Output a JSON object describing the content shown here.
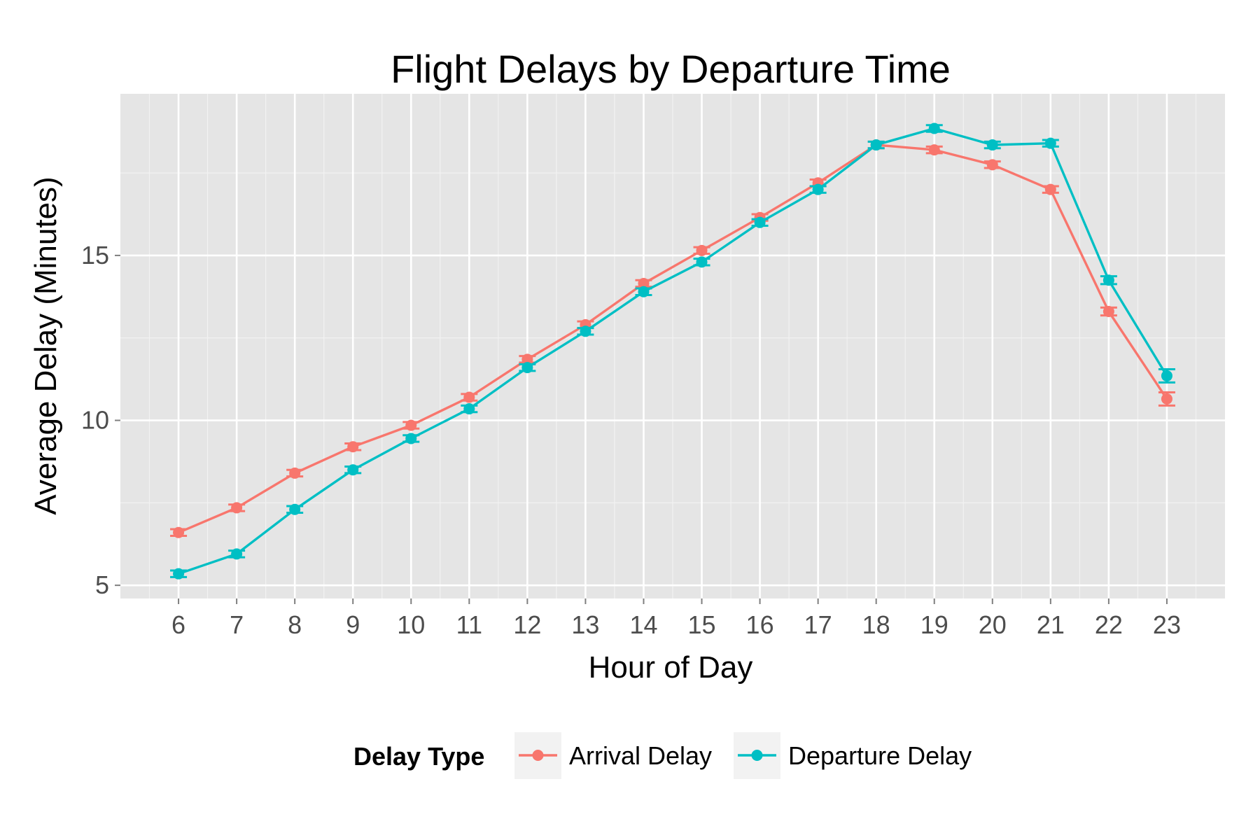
{
  "chart_data": {
    "type": "line",
    "title": "Flight Delays by Departure Time",
    "xlabel": "Hour of Day",
    "ylabel": "Average Delay (Minutes)",
    "x": [
      6,
      7,
      8,
      9,
      10,
      11,
      12,
      13,
      14,
      15,
      16,
      17,
      18,
      19,
      20,
      21,
      22,
      23
    ],
    "xlim": [
      5,
      24
    ],
    "ylim": [
      4.6,
      19.9
    ],
    "yticks": [
      5,
      10,
      15
    ],
    "grid": true,
    "legend": {
      "title": "Delay Type",
      "position": "bottom"
    },
    "series": [
      {
        "name": "Arrival Delay",
        "color": "#F8766D",
        "values": [
          6.6,
          7.35,
          8.4,
          9.2,
          9.85,
          10.7,
          11.85,
          12.9,
          14.15,
          15.15,
          16.15,
          17.2,
          18.35,
          18.2,
          17.75,
          17.0,
          13.3,
          10.65
        ],
        "error": [
          0.1,
          0.1,
          0.1,
          0.1,
          0.1,
          0.1,
          0.1,
          0.1,
          0.1,
          0.1,
          0.1,
          0.1,
          0.1,
          0.1,
          0.1,
          0.1,
          0.12,
          0.2
        ]
      },
      {
        "name": "Departure Delay",
        "color": "#00BFC4",
        "values": [
          5.35,
          5.95,
          7.3,
          8.5,
          9.45,
          10.35,
          11.6,
          12.7,
          13.9,
          14.8,
          16.0,
          17.0,
          18.35,
          18.85,
          18.35,
          18.4,
          14.25,
          11.35
        ],
        "error": [
          0.1,
          0.1,
          0.1,
          0.1,
          0.1,
          0.1,
          0.1,
          0.1,
          0.1,
          0.1,
          0.1,
          0.1,
          0.1,
          0.1,
          0.1,
          0.1,
          0.12,
          0.2
        ]
      }
    ]
  }
}
